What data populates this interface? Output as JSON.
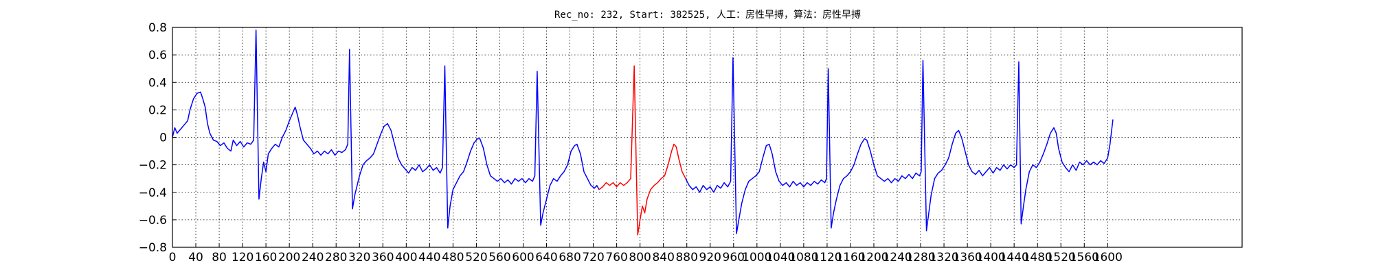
{
  "chart_data": {
    "type": "line",
    "title": "Rec_no: 232, Start: 382525, 人工：房性早搏，算法：房性早搏",
    "xlim": [
      0,
      1830
    ],
    "xticks": [
      0,
      40,
      80,
      120,
      160,
      200,
      240,
      280,
      320,
      360,
      400,
      440,
      480,
      520,
      560,
      600,
      640,
      680,
      720,
      760,
      800,
      840,
      880,
      920,
      960,
      1000,
      1040,
      1080,
      1120,
      1160,
      1200,
      1240,
      1280,
      1320,
      1360,
      1400,
      1440,
      1480,
      1520,
      1560,
      1600
    ],
    "ylim": [
      -0.8,
      0.8
    ],
    "yticks": [
      {
        "value": -0.8,
        "label": "−0.8"
      },
      {
        "value": -0.6,
        "label": "−0.6"
      },
      {
        "value": -0.4,
        "label": "−0.4"
      },
      {
        "value": -0.2,
        "label": "−0.2"
      },
      0.0,
      0.2,
      0.4,
      0.6,
      0.8
    ],
    "grid": true,
    "series": [
      {
        "color": "#0000ff",
        "x": [
          0,
          4,
          8,
          14,
          20,
          26,
          30,
          36,
          42,
          48,
          52,
          56,
          60,
          64,
          70,
          76,
          82,
          88,
          94,
          100,
          104,
          110,
          116,
          122,
          128,
          134,
          139,
          143,
          148,
          152,
          156,
          160,
          164,
          170,
          176,
          182,
          188,
          194,
          200,
          206,
          210,
          214,
          218,
          224,
          230,
          236,
          242,
          248,
          254,
          260,
          266,
          272,
          278,
          284,
          290,
          296,
          300,
          303,
          308,
          312,
          316,
          320,
          326,
          332,
          338,
          344,
          350,
          356,
          362,
          368,
          374,
          380,
          386,
          392,
          398,
          404,
          410,
          416,
          422,
          428,
          434,
          440,
          446,
          452,
          458,
          462,
          466,
          471,
          475,
          480,
          486,
          492,
          498,
          504,
          510,
          516,
          522,
          526,
          532,
          538,
          544,
          550,
          556,
          562,
          568,
          574,
          580,
          586,
          592,
          598,
          604,
          610,
          616,
          620,
          624,
          630,
          634,
          640,
          646,
          652,
          658,
          664,
          670,
          676,
          682,
          688,
          692,
          698,
          704,
          710,
          716,
          722,
          726,
          730
        ],
        "values": [
          0.0,
          0.07,
          0.03,
          0.06,
          0.09,
          0.12,
          0.2,
          0.28,
          0.32,
          0.33,
          0.28,
          0.22,
          0.1,
          0.03,
          -0.02,
          -0.03,
          -0.06,
          -0.04,
          -0.08,
          -0.1,
          -0.02,
          -0.06,
          -0.03,
          -0.07,
          -0.04,
          -0.05,
          -0.02,
          0.78,
          -0.45,
          -0.3,
          -0.18,
          -0.25,
          -0.12,
          -0.08,
          -0.05,
          -0.07,
          0.0,
          0.05,
          0.12,
          0.18,
          0.22,
          0.16,
          0.08,
          -0.02,
          -0.05,
          -0.08,
          -0.12,
          -0.1,
          -0.13,
          -0.1,
          -0.12,
          -0.09,
          -0.13,
          -0.1,
          -0.11,
          -0.09,
          -0.05,
          0.64,
          -0.52,
          -0.42,
          -0.35,
          -0.28,
          -0.2,
          -0.17,
          -0.15,
          -0.12,
          -0.05,
          0.02,
          0.08,
          0.1,
          0.05,
          -0.05,
          -0.15,
          -0.2,
          -0.23,
          -0.26,
          -0.22,
          -0.24,
          -0.2,
          -0.25,
          -0.23,
          -0.2,
          -0.24,
          -0.22,
          -0.26,
          -0.22,
          0.52,
          -0.66,
          -0.5,
          -0.38,
          -0.33,
          -0.28,
          -0.25,
          -0.18,
          -0.1,
          -0.04,
          -0.01,
          -0.01,
          -0.08,
          -0.2,
          -0.28,
          -0.3,
          -0.32,
          -0.3,
          -0.33,
          -0.31,
          -0.34,
          -0.3,
          -0.32,
          -0.3,
          -0.33,
          -0.3,
          -0.32,
          -0.28,
          0.48,
          -0.64,
          -0.55,
          -0.45,
          -0.35,
          -0.3,
          -0.32,
          -0.28,
          -0.25,
          -0.2,
          -0.1,
          -0.06,
          -0.05,
          -0.12,
          -0.25,
          -0.3,
          -0.35,
          -0.37,
          -0.35,
          -0.38
        ]
      },
      {
        "color": "#ff0000",
        "x": [
          730,
          736,
          742,
          748,
          754,
          760,
          766,
          772,
          778,
          784,
          790,
          796,
          800,
          804,
          808,
          812,
          818,
          824,
          830,
          836,
          842,
          848,
          854,
          858,
          862,
          866,
          872,
          878
        ],
        "values": [
          -0.38,
          -0.36,
          -0.33,
          -0.35,
          -0.33,
          -0.36,
          -0.33,
          -0.35,
          -0.33,
          -0.3,
          0.52,
          -0.71,
          -0.6,
          -0.5,
          -0.55,
          -0.45,
          -0.38,
          -0.35,
          -0.33,
          -0.3,
          -0.28,
          -0.2,
          -0.1,
          -0.05,
          -0.07,
          -0.15,
          -0.25,
          -0.3
        ]
      },
      {
        "color": "#0000ff",
        "x": [
          878,
          884,
          890,
          896,
          902,
          908,
          914,
          920,
          926,
          932,
          938,
          944,
          950,
          955,
          959,
          965,
          969,
          974,
          980,
          986,
          992,
          998,
          1004,
          1010,
          1016,
          1021,
          1026,
          1032,
          1038,
          1044,
          1050,
          1056,
          1062,
          1068,
          1074,
          1080,
          1086,
          1092,
          1098,
          1104,
          1110,
          1116,
          1119,
          1122,
          1127,
          1131,
          1136,
          1142,
          1148,
          1154,
          1160,
          1166,
          1172,
          1178,
          1184,
          1188,
          1194,
          1200,
          1206,
          1212,
          1218,
          1224,
          1230,
          1236,
          1242,
          1248,
          1254,
          1260,
          1266,
          1272,
          1278,
          1281,
          1284,
          1290,
          1294,
          1298,
          1304,
          1310,
          1316,
          1322,
          1328,
          1334,
          1340,
          1345,
          1350,
          1356,
          1362,
          1368,
          1374,
          1380,
          1386,
          1392,
          1398,
          1404,
          1410,
          1416,
          1422,
          1428,
          1434,
          1440,
          1444,
          1448,
          1452,
          1456,
          1460,
          1466,
          1472,
          1478,
          1484,
          1490,
          1496,
          1502,
          1508,
          1512,
          1516,
          1522,
          1528,
          1534,
          1540,
          1546,
          1552,
          1558,
          1564,
          1570,
          1576,
          1582,
          1588,
          1594,
          1600,
          1604,
          1609
        ],
        "values": [
          -0.3,
          -0.35,
          -0.38,
          -0.36,
          -0.4,
          -0.35,
          -0.38,
          -0.36,
          -0.4,
          -0.35,
          -0.37,
          -0.33,
          -0.36,
          -0.32,
          0.58,
          -0.7,
          -0.6,
          -0.48,
          -0.38,
          -0.32,
          -0.3,
          -0.28,
          -0.25,
          -0.15,
          -0.06,
          -0.05,
          -0.12,
          -0.25,
          -0.32,
          -0.35,
          -0.33,
          -0.36,
          -0.32,
          -0.35,
          -0.33,
          -0.36,
          -0.33,
          -0.35,
          -0.32,
          -0.34,
          -0.31,
          -0.33,
          -0.3,
          0.5,
          -0.66,
          -0.55,
          -0.45,
          -0.35,
          -0.3,
          -0.28,
          -0.25,
          -0.2,
          -0.12,
          -0.05,
          -0.01,
          -0.02,
          -0.1,
          -0.2,
          -0.28,
          -0.3,
          -0.32,
          -0.3,
          -0.33,
          -0.3,
          -0.32,
          -0.28,
          -0.3,
          -0.27,
          -0.3,
          -0.26,
          -0.28,
          -0.25,
          0.56,
          -0.68,
          -0.55,
          -0.42,
          -0.3,
          -0.26,
          -0.24,
          -0.2,
          -0.15,
          -0.05,
          0.03,
          0.05,
          0.0,
          -0.1,
          -0.2,
          -0.25,
          -0.27,
          -0.24,
          -0.28,
          -0.25,
          -0.22,
          -0.26,
          -0.22,
          -0.24,
          -0.2,
          -0.23,
          -0.2,
          -0.22,
          -0.2,
          0.55,
          -0.63,
          -0.5,
          -0.38,
          -0.25,
          -0.2,
          -0.22,
          -0.18,
          -0.12,
          -0.05,
          0.03,
          0.07,
          0.03,
          -0.08,
          -0.18,
          -0.22,
          -0.25,
          -0.2,
          -0.24,
          -0.18,
          -0.2,
          -0.17,
          -0.2,
          -0.18,
          -0.2,
          -0.17,
          -0.19,
          -0.15,
          -0.05,
          0.13
        ]
      }
    ]
  }
}
